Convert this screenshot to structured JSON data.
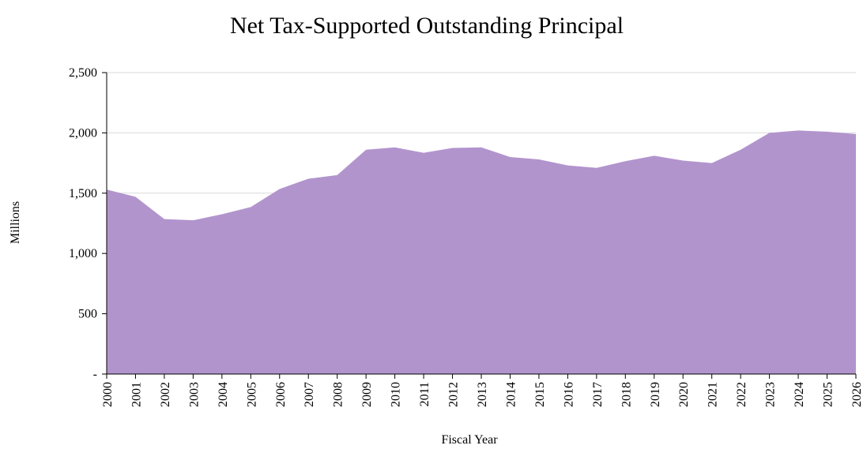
{
  "chart_data": {
    "type": "area",
    "title": "Net Tax-Supported Outstanding Principal",
    "xlabel": "Fiscal Year",
    "ylabel": "Millions",
    "x": [
      "2000",
      "2001",
      "2002",
      "2003",
      "2004",
      "2005",
      "2006",
      "2007",
      "2008",
      "2009",
      "2010",
      "2011",
      "2012",
      "2013",
      "2014",
      "2015",
      "2016",
      "2017",
      "2018",
      "2019",
      "2020",
      "2021",
      "2022",
      "2023",
      "2024",
      "2025",
      "2026"
    ],
    "series": [
      {
        "name": "",
        "values": [
          1530,
          1470,
          1285,
          1275,
          1325,
          1385,
          1535,
          1620,
          1650,
          1860,
          1880,
          1835,
          1875,
          1880,
          1800,
          1780,
          1730,
          1710,
          1765,
          1810,
          1770,
          1750,
          1860,
          2000,
          2020,
          2010,
          1990
        ]
      }
    ],
    "ylim": [
      0,
      2500
    ],
    "yticks": [
      0,
      500,
      1000,
      1500,
      2000,
      2500
    ],
    "ytick_labels": [
      "-",
      "500",
      "1,000",
      "1,500",
      "2,000",
      "2,500"
    ],
    "grid": true,
    "legend": "none",
    "colors": {
      "fill": "#b294cd",
      "grid": "#d9d9d9",
      "axis": "#000000"
    }
  }
}
